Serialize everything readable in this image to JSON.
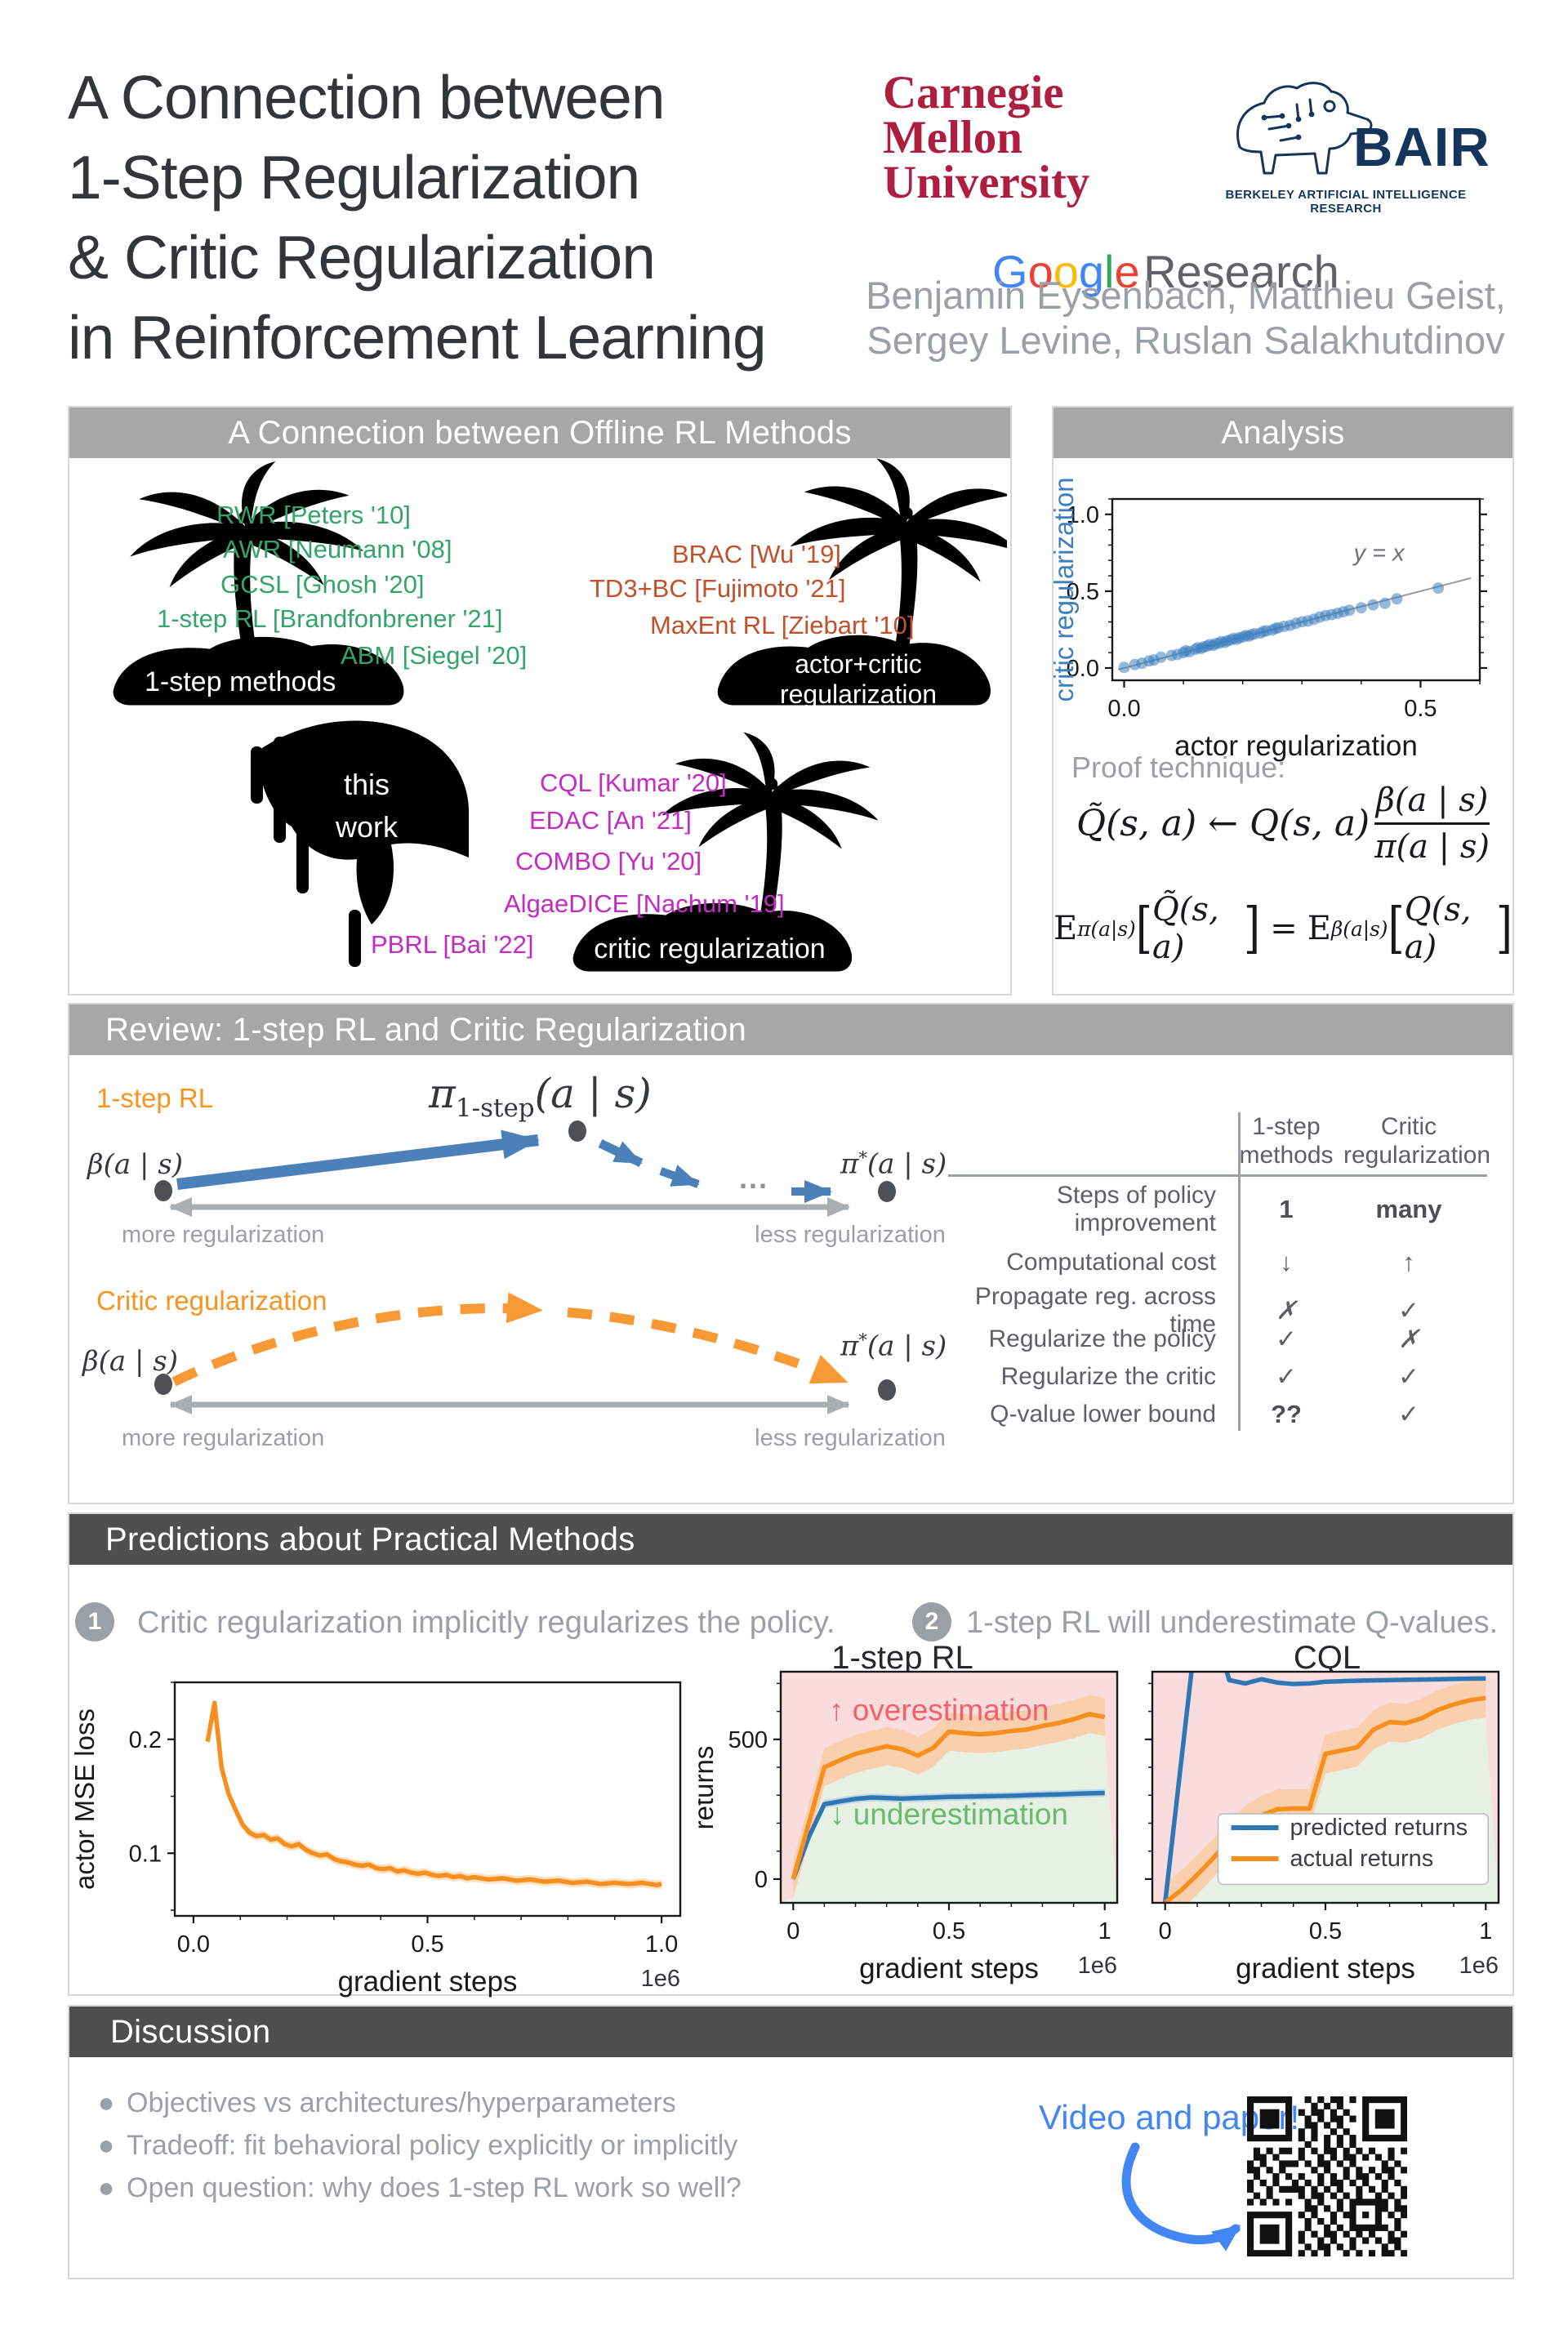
{
  "header": {
    "title_lines": [
      "A Connection between",
      "1-Step Regularization",
      "& Critic Regularization",
      "in Reinforcement Learning"
    ],
    "cmu_lines": [
      "Carnegie",
      "Mellon",
      "University"
    ],
    "bair": {
      "name": "BAIR",
      "subtitle": "BERKELEY ARTIFICIAL INTELLIGENCE RESEARCH"
    },
    "google": {
      "letters": [
        {
          "ch": "G",
          "color": "#4285F4"
        },
        {
          "ch": "o",
          "color": "#EA4335"
        },
        {
          "ch": "o",
          "color": "#FBBC05"
        },
        {
          "ch": "g",
          "color": "#4285F4"
        },
        {
          "ch": "l",
          "color": "#34A853"
        },
        {
          "ch": "e",
          "color": "#EA4335"
        }
      ],
      "research": "Research"
    },
    "authors_lines": [
      "Benjamin Eysenbach, Matthieu Geist,",
      "Sergey Levine, Ruslan Salakhutdinov"
    ]
  },
  "panels": {
    "connection": {
      "title": "A Connection between Offline RL Methods",
      "islands": {
        "one_step": {
          "label": "1-step methods",
          "methods": [
            "RWR [Peters '10]",
            "AWR [Neumann '08]",
            "GCSL [Ghosh '20]",
            "1-step RL [Brandfonbrener '21]",
            "ABM [Siegel '20]"
          ]
        },
        "actor_critic": {
          "label_lines": [
            "actor+critic",
            "regularization"
          ],
          "methods": [
            "BRAC [Wu '19]",
            "TD3+BC [Fujimoto '21]",
            "MaxEnt RL [Ziebart '10]"
          ]
        },
        "critic": {
          "label": "critic regularization",
          "methods": [
            "CQL [Kumar '20]",
            "EDAC [An '21]",
            "COMBO [Yu '20]",
            "AlgaeDICE [Nachum '19]",
            "PBRL [Bai '22]"
          ]
        }
      },
      "this_work_lines": [
        "this",
        "work"
      ]
    },
    "analysis": {
      "title": "Analysis",
      "proof_label": "Proof technique:",
      "eq1": {
        "lhs": "Q̃(s, a) ← Q(s, a)",
        "num": "β(a | s)",
        "den": "π(a | s)"
      },
      "eq2": {
        "E1": "E",
        "sub1": "π(a|s)",
        "lb1": "[",
        "arg1": "Q̃(s, a)",
        "rb1": "]",
        "eq": "=",
        "E2": "E",
        "sub2": "β(a|s)",
        "lb2": "[",
        "arg2": "Q(s, a)",
        "rb2": "]"
      }
    },
    "review": {
      "title": "Review: 1-step RL and Critic Regularization",
      "one_step_label": "1-step RL",
      "critic_label": "Critic regularization",
      "pi_1step": {
        "base": "π",
        "sub": "1-step",
        "args": "(a | s)"
      },
      "pi_star": {
        "base": "π",
        "sup": "*",
        "args": "(a | s)"
      },
      "beta": "β(a | s)",
      "dots": "...",
      "more": "more regularization",
      "less": "less regularization",
      "table": {
        "col_a_lines": [
          "1-step",
          "methods"
        ],
        "col_b_lines": [
          "Critic",
          "regularization"
        ],
        "rows": [
          {
            "label_lines": [
              "Steps of policy",
              "improvement"
            ],
            "a": "1",
            "b": "many"
          },
          {
            "label_lines": [
              "Computational cost"
            ],
            "a": "↓",
            "b": "↑"
          },
          {
            "label_lines": [
              "Propagate reg. across time"
            ],
            "a": "✗",
            "b": "✓"
          },
          {
            "label_lines": [
              "Regularize the policy"
            ],
            "a": "✓",
            "b": "✗"
          },
          {
            "label_lines": [
              "Regularize the critic"
            ],
            "a": "✓",
            "b": "✓"
          },
          {
            "label_lines": [
              "Q-value lower bound"
            ],
            "a": "??",
            "b": "✓"
          }
        ]
      }
    },
    "predictions": {
      "title": "Predictions about Practical Methods",
      "items": [
        {
          "num": "1",
          "text": "Critic regularization implicitly regularizes the policy."
        },
        {
          "num": "2",
          "text": "1-step RL will underestimate Q-values."
        }
      ]
    },
    "discussion": {
      "title": "Discussion",
      "bullets": [
        "Objectives vs architectures/hyperparameters",
        "Tradeoff: fit behavioral policy explicitly or implicitly",
        "Open question: why does 1-step RL work so well?"
      ],
      "video_label": "Video and paper!"
    }
  },
  "colors": {
    "green_methods": "#34a46a",
    "red_methods": "#c0512a",
    "magenta_methods": "#c32bc3",
    "orange_accent": "#f79421",
    "blue_arrow": "#4b80b8",
    "google_blue": "#4285f4",
    "band_light": "#a7a7a7",
    "band_dark": "#4f4f4f",
    "gray_text": "#9aa0a6",
    "cmu_red": "#ad1e40",
    "bair_navy": "#16355c",
    "over_pink": "#f2606d",
    "under_green": "#68ba6e"
  },
  "chart_data": [
    {
      "type": "scatter",
      "title": "",
      "xlabel": "actor regularization",
      "ylabel": "critic regularization",
      "ylabel_color": "#3f7fbe",
      "xlim": [
        -0.02,
        0.6
      ],
      "ylim": [
        -0.08,
        1.1
      ],
      "xticks": {
        "vals": [
          0,
          0.5
        ],
        "labels": [
          "0.0",
          "0.5"
        ],
        "minor": 0.1
      },
      "yticks": {
        "vals": [
          0,
          0.5,
          1.0
        ],
        "labels": [
          "0.0",
          "0.5",
          "1.0"
        ],
        "minor": 0.1
      },
      "mirror_y": true,
      "refline": {
        "from": [
          -0.01,
          -0.01
        ],
        "to": [
          0.585,
          0.585
        ],
        "label": "y = x",
        "label_at": [
          0.43,
          0.7
        ]
      },
      "point_color": "#3c7fbf",
      "points": [
        [
          0.0,
          0.004
        ],
        [
          0.018,
          0.022
        ],
        [
          0.03,
          0.031
        ],
        [
          0.042,
          0.046
        ],
        [
          0.05,
          0.052
        ],
        [
          0.062,
          0.07
        ],
        [
          0.08,
          0.082
        ],
        [
          0.09,
          0.088
        ],
        [
          0.1,
          0.1
        ],
        [
          0.104,
          0.112
        ],
        [
          0.11,
          0.106
        ],
        [
          0.12,
          0.121
        ],
        [
          0.124,
          0.131
        ],
        [
          0.13,
          0.127
        ],
        [
          0.134,
          0.137
        ],
        [
          0.14,
          0.142
        ],
        [
          0.144,
          0.152
        ],
        [
          0.15,
          0.147
        ],
        [
          0.154,
          0.158
        ],
        [
          0.16,
          0.161
        ],
        [
          0.164,
          0.172
        ],
        [
          0.17,
          0.166
        ],
        [
          0.174,
          0.177
        ],
        [
          0.18,
          0.182
        ],
        [
          0.184,
          0.192
        ],
        [
          0.19,
          0.187
        ],
        [
          0.194,
          0.197
        ],
        [
          0.2,
          0.202
        ],
        [
          0.205,
          0.212
        ],
        [
          0.21,
          0.207
        ],
        [
          0.215,
          0.217
        ],
        [
          0.22,
          0.222
        ],
        [
          0.23,
          0.227
        ],
        [
          0.235,
          0.238
        ],
        [
          0.24,
          0.242
        ],
        [
          0.25,
          0.247
        ],
        [
          0.255,
          0.257
        ],
        [
          0.26,
          0.262
        ],
        [
          0.27,
          0.271
        ],
        [
          0.28,
          0.277
        ],
        [
          0.29,
          0.291
        ],
        [
          0.3,
          0.301
        ],
        [
          0.31,
          0.306
        ],
        [
          0.32,
          0.317
        ],
        [
          0.33,
          0.331
        ],
        [
          0.34,
          0.341
        ],
        [
          0.35,
          0.347
        ],
        [
          0.36,
          0.356
        ],
        [
          0.37,
          0.366
        ],
        [
          0.38,
          0.376
        ],
        [
          0.4,
          0.392
        ],
        [
          0.42,
          0.411
        ],
        [
          0.44,
          0.421
        ],
        [
          0.46,
          0.45
        ],
        [
          0.53,
          0.52
        ]
      ]
    },
    {
      "type": "line",
      "title": "",
      "xlabel": "gradient steps",
      "ylabel": "actor MSE loss",
      "offset_label": "1e6",
      "xlim": [
        -0.04,
        1.04
      ],
      "ylim": [
        0.045,
        0.25
      ],
      "xticks": {
        "vals": [
          0,
          0.5,
          1
        ],
        "labels": [
          "0.0",
          "0.5",
          "1.0"
        ],
        "minor": 0.1
      },
      "yticks": {
        "vals": [
          0.1,
          0.2
        ],
        "labels": [
          "0.1",
          "0.2"
        ],
        "minor": 0.05
      },
      "series": [
        {
          "name": "loss",
          "color": "#f78f1e",
          "w": 5.5,
          "band": 0.004,
          "band_color": "#fbd9b0",
          "band_op": 0.8,
          "x": [
            0.03,
            0.045,
            0.06,
            0.075,
            0.09,
            0.105,
            0.12,
            0.135,
            0.15,
            0.165,
            0.18,
            0.195,
            0.21,
            0.225,
            0.24,
            0.255,
            0.27,
            0.285,
            0.3,
            0.315,
            0.33,
            0.345,
            0.36,
            0.375,
            0.39,
            0.405,
            0.42,
            0.435,
            0.45,
            0.465,
            0.48,
            0.495,
            0.51,
            0.525,
            0.54,
            0.555,
            0.57,
            0.585,
            0.6,
            0.63,
            0.66,
            0.69,
            0.72,
            0.75,
            0.78,
            0.81,
            0.84,
            0.87,
            0.9,
            0.93,
            0.96,
            0.99,
            1.0
          ],
          "y": [
            0.198,
            0.232,
            0.175,
            0.152,
            0.138,
            0.125,
            0.118,
            0.115,
            0.116,
            0.112,
            0.113,
            0.108,
            0.106,
            0.108,
            0.103,
            0.1,
            0.098,
            0.099,
            0.095,
            0.093,
            0.092,
            0.09,
            0.089,
            0.09,
            0.087,
            0.086,
            0.087,
            0.084,
            0.085,
            0.083,
            0.082,
            0.083,
            0.081,
            0.08,
            0.081,
            0.079,
            0.08,
            0.078,
            0.079,
            0.077,
            0.078,
            0.076,
            0.077,
            0.075,
            0.076,
            0.074,
            0.075,
            0.073,
            0.074,
            0.073,
            0.074,
            0.072,
            0.073
          ]
        }
      ]
    },
    {
      "type": "line",
      "title": "1-step RL",
      "xlabel": "gradient steps",
      "ylabel": "returns",
      "offset_label": "1e6",
      "xlim": [
        -0.04,
        1.04
      ],
      "ylim": [
        -85,
        742
      ],
      "xticks": {
        "vals": [
          0,
          0.5,
          1
        ],
        "labels": [
          "0",
          "0.5",
          "1"
        ],
        "minor": 0.1
      },
      "yticks": {
        "vals": [
          0,
          500
        ],
        "labels": [
          "0",
          "500"
        ],
        "minor": 100
      },
      "bg": {
        "boundary": "actual",
        "pink": "#fadcdc",
        "green": "#e7f1e3"
      },
      "annotations": [
        {
          "text": "↑  overestimation",
          "fx": 0.47,
          "fy": 0.21,
          "color": "#f2606d",
          "size": 37
        },
        {
          "text": "↓  underestimation",
          "fx": 0.5,
          "fy": 0.66,
          "color": "#68ba6e",
          "size": 37
        }
      ],
      "series": [
        {
          "name": "predicted",
          "color": "#2f76b4",
          "w": 5.5,
          "band": 14,
          "band_color": "#aecde9",
          "band_op": 0.7,
          "x": [
            0,
            0.05,
            0.1,
            0.15,
            0.2,
            0.25,
            0.3,
            0.35,
            0.4,
            0.45,
            0.5,
            0.55,
            0.6,
            0.65,
            0.7,
            0.75,
            0.8,
            0.85,
            0.9,
            0.95,
            1.0
          ],
          "y": [
            0,
            150,
            268,
            278,
            287,
            292,
            290,
            288,
            290,
            292,
            294,
            295,
            296,
            297,
            298,
            300,
            302,
            303,
            305,
            307,
            308
          ]
        },
        {
          "name": "actual",
          "color": "#f78f1e",
          "w": 5.5,
          "band": 68,
          "band_color": "#f9c488",
          "band_op": 0.55,
          "x": [
            0,
            0.05,
            0.1,
            0.15,
            0.2,
            0.25,
            0.3,
            0.35,
            0.4,
            0.45,
            0.5,
            0.55,
            0.6,
            0.65,
            0.7,
            0.75,
            0.8,
            0.85,
            0.9,
            0.95,
            1.0
          ],
          "y": [
            0,
            200,
            400,
            425,
            448,
            462,
            475,
            465,
            442,
            470,
            528,
            522,
            518,
            522,
            530,
            535,
            548,
            558,
            572,
            590,
            580
          ]
        }
      ]
    },
    {
      "type": "line",
      "title": "CQL",
      "xlabel": "gradient steps",
      "ylabel": "",
      "offset_label": "1e6",
      "xlim": [
        -0.04,
        1.04
      ],
      "ylim": [
        -85,
        742
      ],
      "xticks": {
        "vals": [
          0,
          0.5,
          1
        ],
        "labels": [
          "0",
          "0.5",
          "1"
        ],
        "minor": 0.1
      },
      "yticks": {
        "vals": [
          0,
          500
        ],
        "labels": [
          "",
          ""
        ],
        "minor": 100
      },
      "bg": {
        "boundary": "actual",
        "pink": "#fadcdc",
        "green": "#e7f1e3"
      },
      "legend": {
        "fx": 0.19,
        "fy": 0.615,
        "fw": 0.78,
        "fh": 0.305,
        "entries": [
          {
            "label": "predicted returns",
            "color": "#2f76b4"
          },
          {
            "label": "actual returns",
            "color": "#f78f1e"
          }
        ]
      },
      "series": [
        {
          "name": "predicted",
          "color": "#2f76b4",
          "w": 5.5,
          "band": 8,
          "band_color": "#aecde9",
          "band_op": 0.6,
          "x": [
            0,
            0.05,
            0.1,
            0.15,
            0.2,
            0.25,
            0.3,
            0.35,
            0.4,
            0.45,
            0.5,
            0.55,
            0.6,
            0.65,
            0.7,
            0.75,
            0.8,
            0.85,
            0.9,
            0.95,
            1.0
          ],
          "y": [
            -84,
            420,
            920,
            900,
            712,
            700,
            715,
            703,
            698,
            700,
            706,
            708,
            710,
            711,
            712,
            713,
            714,
            715,
            716,
            717,
            718
          ]
        },
        {
          "name": "actual",
          "color": "#f78f1e",
          "w": 5.5,
          "band": 70,
          "band_color": "#f9c488",
          "band_op": 0.55,
          "x": [
            0,
            0.05,
            0.1,
            0.15,
            0.2,
            0.25,
            0.3,
            0.35,
            0.4,
            0.45,
            0.5,
            0.55,
            0.6,
            0.65,
            0.7,
            0.75,
            0.8,
            0.85,
            0.9,
            0.95,
            1.0
          ],
          "y": [
            -84,
            -40,
            15,
            75,
            140,
            192,
            228,
            250,
            252,
            252,
            448,
            460,
            472,
            535,
            562,
            558,
            575,
            605,
            625,
            640,
            648
          ]
        }
      ]
    }
  ]
}
